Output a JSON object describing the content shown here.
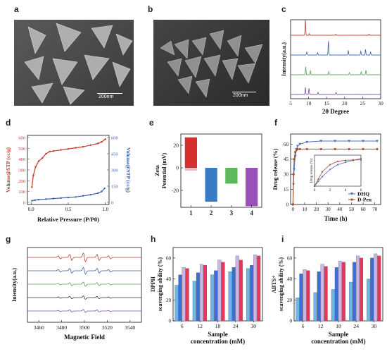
{
  "panels": {
    "a": {
      "letter": "a",
      "scalebar": "200nm"
    },
    "b": {
      "letter": "b",
      "scalebar": "200nm"
    },
    "c": {
      "letter": "c"
    },
    "d": {
      "letter": "d"
    },
    "e": {
      "letter": "e"
    },
    "f": {
      "letter": "f"
    },
    "g": {
      "letter": "g"
    },
    "h": {
      "letter": "h"
    },
    "i": {
      "letter": "i"
    }
  },
  "chart_data": [
    {
      "id": "c",
      "type": "line",
      "xlabel": "2θ Degree",
      "ylabel": "Intensity(a.u.)",
      "xlim": [
        5,
        30
      ],
      "xticks": [
        "5",
        "10",
        "15",
        "20",
        "25",
        "30"
      ],
      "series": [
        {
          "color": "#c0392b",
          "peaks": [
            [
              9.1,
              1.0
            ],
            [
              10.2,
              0.1
            ],
            [
              17.5,
              0.06
            ],
            [
              26.8,
              0.08
            ]
          ]
        },
        {
          "color": "#3b5fa8",
          "peaks": [
            [
              15.5,
              0.9
            ],
            [
              9.5,
              0.2
            ],
            [
              21.0,
              0.3
            ],
            [
              24.5,
              0.25
            ],
            [
              25.8,
              0.35
            ],
            [
              27.2,
              0.2
            ],
            [
              12.5,
              0.15
            ]
          ]
        },
        {
          "color": "#5aa05a",
          "peaks": [
            [
              9.2,
              0.5
            ],
            [
              10.5,
              0.25
            ],
            [
              15.6,
              0.2
            ],
            [
              21.3,
              0.15
            ],
            [
              24.6,
              0.2
            ],
            [
              25.9,
              0.3
            ]
          ]
        },
        {
          "color": "#7e4ea8",
          "peaks": [
            [
              9.1,
              0.45
            ],
            [
              10.1,
              0.4
            ],
            [
              12.6,
              0.15
            ],
            [
              17.6,
              0.15
            ]
          ]
        }
      ]
    },
    {
      "id": "d",
      "type": "line",
      "xlabel": "Relative Pressure (P/P0)",
      "ylabel": "Volume@STP (cc/g)",
      "ylabel_right": "Volume@STP (cc/g)",
      "xlim": [
        0,
        1.0
      ],
      "ylim_left": [
        0,
        600
      ],
      "ylim_right": [
        0,
        600
      ],
      "xticks": [
        "0.0",
        "0.5",
        "1.0"
      ],
      "yticks_left": [
        "0",
        "100",
        "200",
        "300",
        "400",
        "500",
        "600"
      ],
      "yticks_right": [
        "0",
        "150",
        "300",
        "450",
        "600"
      ],
      "series": [
        {
          "color": "#c0392b",
          "axis": "left",
          "x": [
            0.01,
            0.03,
            0.06,
            0.1,
            0.15,
            0.2,
            0.25,
            0.3,
            0.4,
            0.5,
            0.6,
            0.7,
            0.8,
            0.9,
            0.95,
            1.0
          ],
          "y": [
            140,
            250,
            330,
            380,
            410,
            450,
            470,
            475,
            485,
            495,
            505,
            515,
            530,
            545,
            560,
            585
          ]
        },
        {
          "color": "#3b5fa8",
          "axis": "right",
          "x": [
            0.01,
            0.05,
            0.1,
            0.2,
            0.3,
            0.4,
            0.5,
            0.6,
            0.7,
            0.8,
            0.9,
            0.95,
            0.99
          ],
          "y": [
            15,
            20,
            25,
            30,
            35,
            40,
            45,
            50,
            60,
            70,
            85,
            100,
            130
          ]
        }
      ]
    },
    {
      "id": "e",
      "type": "bar",
      "xlabel": "",
      "ylabel": "Zeta Potential (mV)",
      "categories": [
        "1",
        "2",
        "3",
        "4"
      ],
      "values": [
        27,
        -30,
        -14,
        -34
      ],
      "colors": [
        "#d62f2f",
        "#3a7bc8",
        "#5cb85c",
        "#9b4fb8"
      ],
      "ylim": [
        -35,
        30
      ],
      "yticks": [
        "-20",
        "0",
        "20"
      ]
    },
    {
      "id": "f",
      "type": "line",
      "xlabel": "Time (h)",
      "ylabel": "Drug release (%)",
      "xlim": [
        0,
        75
      ],
      "ylim": [
        0,
        70
      ],
      "xticks": [
        "0",
        "10",
        "20",
        "30",
        "40",
        "50",
        "60",
        "70"
      ],
      "yticks": [
        "0",
        "15",
        "30",
        "45",
        "60"
      ],
      "series": [
        {
          "name": "DHQ",
          "color": "#4a6fc4",
          "x": [
            0,
            0.5,
            1,
            2,
            3,
            4,
            6,
            12,
            24,
            36,
            48,
            60,
            72
          ],
          "y": [
            0,
            20,
            35,
            48,
            55,
            58,
            60,
            62,
            63,
            63,
            63,
            63,
            63
          ]
        },
        {
          "name": "D-Pen",
          "color": "#a0522d",
          "x": [
            0,
            0.5,
            1,
            2,
            3,
            4,
            6,
            12,
            24,
            36,
            48,
            60,
            72
          ],
          "y": [
            0,
            30,
            45,
            52,
            54,
            55,
            55,
            55,
            55,
            55,
            55,
            55,
            55
          ]
        }
      ],
      "inset": {
        "xticks": [
          "0",
          "2",
          "4",
          "6"
        ],
        "ylabel": "Drug release (%)",
        "series": [
          {
            "color": "#4a6fc4",
            "x": [
              0,
              0.5,
              1,
              2,
              3,
              4,
              5,
              6
            ],
            "y": [
              0,
              10,
              20,
              35,
              45,
              50,
              54,
              58
            ]
          },
          {
            "color": "#a0522d",
            "x": [
              0,
              0.5,
              1,
              2,
              3,
              4,
              5,
              6
            ],
            "y": [
              0,
              15,
              30,
              45,
              52,
              54,
              55,
              55
            ]
          }
        ]
      }
    },
    {
      "id": "g",
      "type": "line",
      "xlabel": "Magnetic Field",
      "ylabel": "Intensity(a.u.)",
      "xlim": [
        3450,
        3550
      ],
      "xticks": [
        "3460",
        "3480",
        "3500",
        "3520",
        "3540"
      ],
      "series": [
        {
          "color": "#c0392b",
          "amp": 1.0
        },
        {
          "color": "#3b5fa8",
          "amp": 0.8
        },
        {
          "color": "#5aa05a",
          "amp": 0.5
        },
        {
          "color": "#333333",
          "amp": 0.4
        },
        {
          "color": "#7e4ea8",
          "amp": 0.35
        }
      ]
    },
    {
      "id": "h",
      "type": "bar",
      "xlabel": "Sample concentration (mM)",
      "ylabel": "DPPH scavenging ability (%)",
      "categories": [
        "6",
        "12",
        "18",
        "24",
        "30"
      ],
      "ylim": [
        0,
        70
      ],
      "yticks": [
        "0",
        "20",
        "40",
        "60"
      ],
      "series": [
        {
          "color": "#6fb6e8",
          "values": [
            34,
            38,
            44,
            47,
            50
          ]
        },
        {
          "color": "#3c6fd4",
          "values": [
            44,
            46,
            48,
            51,
            53
          ]
        },
        {
          "color": "#c9b6e6",
          "values": [
            51,
            54,
            58,
            62,
            63
          ]
        },
        {
          "color": "#e8355a",
          "values": [
            50,
            53,
            56,
            58,
            62
          ]
        }
      ]
    },
    {
      "id": "i",
      "type": "bar",
      "xlabel": "Sample concentration (mM)",
      "ylabel": "ABTS+ scavenging ability (%)",
      "categories": [
        "6",
        "12",
        "18",
        "24",
        "30"
      ],
      "ylim": [
        0,
        70
      ],
      "yticks": [
        "0",
        "20",
        "40",
        "60"
      ],
      "series": [
        {
          "color": "#6fb6e8",
          "values": [
            22,
            27,
            30,
            37,
            40
          ]
        },
        {
          "color": "#3c6fd4",
          "values": [
            45,
            47,
            51,
            56,
            60
          ]
        },
        {
          "color": "#c9b6e6",
          "values": [
            49,
            54,
            57,
            62,
            64
          ]
        },
        {
          "color": "#e8355a",
          "values": [
            48,
            52,
            56,
            60,
            62
          ]
        }
      ]
    }
  ]
}
